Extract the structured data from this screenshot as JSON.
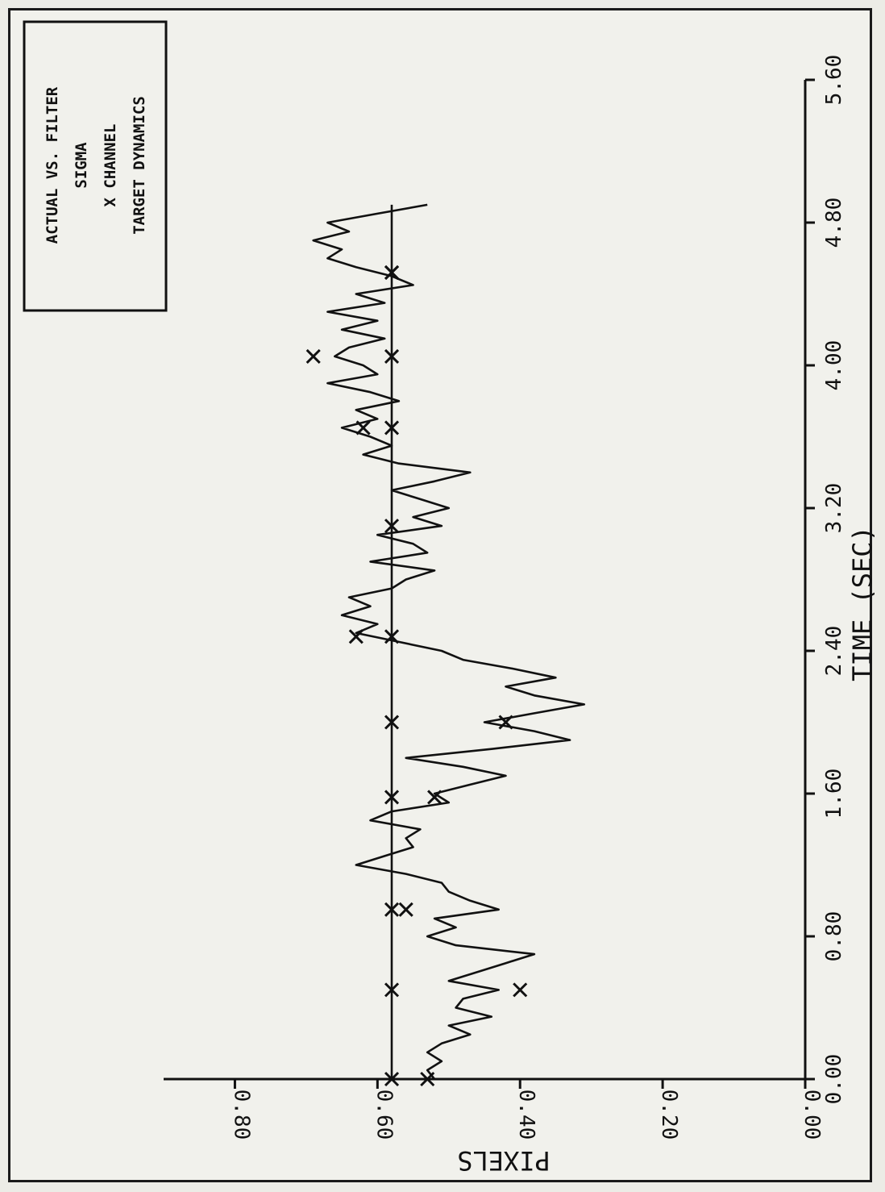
{
  "chart_data": {
    "type": "line",
    "orientation": "rotated 90 degrees counter-clockwise",
    "legend_lines": [
      "ACTUAL VS. FILTER",
      "SIGMA",
      "X CHANNEL",
      "TARGET DYNAMICS"
    ],
    "xlabel": "TIME (SEC)",
    "ylabel": "PIXELS",
    "xlim": [
      0,
      5.6
    ],
    "ylim": [
      0,
      0.9
    ],
    "x_ticks": [
      "0.00",
      "0.80",
      "1.60",
      "2.40",
      "3.20",
      "4.00",
      "4.80",
      "5.60"
    ],
    "y_ticks": [
      "0.00",
      "0.20",
      "0.40",
      "0.60",
      "0.80"
    ],
    "grid": false,
    "legend_position": "top-left",
    "series": [
      {
        "marker": "none",
        "points": [
          [
            0.0,
            0.52
          ],
          [
            0.05,
            0.53
          ],
          [
            0.1,
            0.51
          ],
          [
            0.15,
            0.53
          ],
          [
            0.2,
            0.51
          ],
          [
            0.25,
            0.47
          ],
          [
            0.3,
            0.5
          ],
          [
            0.35,
            0.44
          ],
          [
            0.4,
            0.49
          ],
          [
            0.45,
            0.48
          ],
          [
            0.5,
            0.43
          ],
          [
            0.55,
            0.5
          ],
          [
            0.6,
            0.46
          ],
          [
            0.65,
            0.42
          ],
          [
            0.7,
            0.38
          ],
          [
            0.75,
            0.49
          ],
          [
            0.8,
            0.53
          ],
          [
            0.85,
            0.49
          ],
          [
            0.9,
            0.52
          ],
          [
            0.95,
            0.43
          ],
          [
            1.0,
            0.47
          ],
          [
            1.05,
            0.5
          ],
          [
            1.1,
            0.51
          ],
          [
            1.15,
            0.56
          ],
          [
            1.2,
            0.63
          ],
          [
            1.25,
            0.59
          ],
          [
            1.3,
            0.55
          ],
          [
            1.35,
            0.56
          ],
          [
            1.4,
            0.54
          ],
          [
            1.45,
            0.61
          ],
          [
            1.5,
            0.58
          ],
          [
            1.55,
            0.5
          ],
          [
            1.6,
            0.52
          ],
          [
            1.65,
            0.47
          ],
          [
            1.7,
            0.42
          ],
          [
            1.75,
            0.48
          ],
          [
            1.8,
            0.56
          ],
          [
            1.85,
            0.44
          ],
          [
            1.9,
            0.33
          ],
          [
            1.95,
            0.38
          ],
          [
            2.0,
            0.45
          ],
          [
            2.05,
            0.38
          ],
          [
            2.1,
            0.31
          ],
          [
            2.15,
            0.38
          ],
          [
            2.2,
            0.42
          ],
          [
            2.25,
            0.35
          ],
          [
            2.3,
            0.41
          ],
          [
            2.35,
            0.48
          ],
          [
            2.4,
            0.51
          ],
          [
            2.45,
            0.57
          ],
          [
            2.5,
            0.63
          ],
          [
            2.55,
            0.6
          ],
          [
            2.6,
            0.65
          ],
          [
            2.65,
            0.61
          ],
          [
            2.7,
            0.64
          ],
          [
            2.75,
            0.58
          ],
          [
            2.8,
            0.56
          ],
          [
            2.85,
            0.52
          ],
          [
            2.9,
            0.61
          ],
          [
            2.95,
            0.53
          ],
          [
            3.0,
            0.55
          ],
          [
            3.05,
            0.6
          ],
          [
            3.1,
            0.51
          ],
          [
            3.15,
            0.55
          ],
          [
            3.2,
            0.5
          ],
          [
            3.25,
            0.54
          ],
          [
            3.3,
            0.58
          ],
          [
            3.35,
            0.52
          ],
          [
            3.4,
            0.47
          ],
          [
            3.45,
            0.57
          ],
          [
            3.5,
            0.62
          ],
          [
            3.55,
            0.58
          ],
          [
            3.6,
            0.61
          ],
          [
            3.65,
            0.65
          ],
          [
            3.7,
            0.6
          ],
          [
            3.75,
            0.63
          ],
          [
            3.8,
            0.57
          ],
          [
            3.85,
            0.61
          ],
          [
            3.9,
            0.67
          ],
          [
            3.95,
            0.6
          ],
          [
            4.0,
            0.62
          ],
          [
            4.05,
            0.66
          ],
          [
            4.1,
            0.64
          ],
          [
            4.15,
            0.59
          ],
          [
            4.2,
            0.65
          ],
          [
            4.25,
            0.6
          ],
          [
            4.3,
            0.67
          ],
          [
            4.35,
            0.59
          ],
          [
            4.4,
            0.63
          ],
          [
            4.45,
            0.55
          ],
          [
            4.5,
            0.58
          ],
          [
            4.55,
            0.63
          ],
          [
            4.6,
            0.67
          ],
          [
            4.65,
            0.65
          ],
          [
            4.7,
            0.69
          ],
          [
            4.75,
            0.64
          ],
          [
            4.8,
            0.67
          ],
          [
            4.85,
            0.6
          ],
          [
            4.9,
            0.53
          ]
        ]
      },
      {
        "marker": "x",
        "points": [
          [
            0.0,
            0.58
          ],
          [
            0.5,
            0.58
          ],
          [
            0.9,
            0.58
          ],
          [
            1.2,
            0.58
          ],
          [
            1.58,
            0.58
          ],
          [
            1.9,
            0.58
          ],
          [
            2.2,
            0.58
          ],
          [
            2.48,
            0.58
          ],
          [
            2.8,
            0.58
          ],
          [
            3.1,
            0.58
          ],
          [
            3.4,
            0.58
          ],
          [
            3.7,
            0.58
          ],
          [
            4.0,
            0.58
          ],
          [
            4.3,
            0.58
          ],
          [
            4.6,
            0.58
          ],
          [
            4.9,
            0.58
          ]
        ],
        "markers_at": [
          [
            0.0,
            0.58
          ],
          [
            0.5,
            0.58
          ],
          [
            0.95,
            0.58
          ],
          [
            1.58,
            0.58
          ],
          [
            2.0,
            0.58
          ],
          [
            2.48,
            0.58
          ],
          [
            3.1,
            0.58
          ],
          [
            3.65,
            0.58
          ],
          [
            4.05,
            0.58
          ],
          [
            4.52,
            0.58
          ]
        ]
      },
      {
        "marker": "x",
        "marker_only": true,
        "points": [
          [
            0.0,
            0.53
          ],
          [
            0.5,
            0.4
          ],
          [
            0.95,
            0.56
          ],
          [
            1.58,
            0.52
          ],
          [
            2.0,
            0.42
          ],
          [
            2.48,
            0.63
          ],
          [
            3.65,
            0.62
          ],
          [
            4.05,
            0.69
          ],
          [
            4.52,
            0.58
          ]
        ]
      }
    ]
  }
}
